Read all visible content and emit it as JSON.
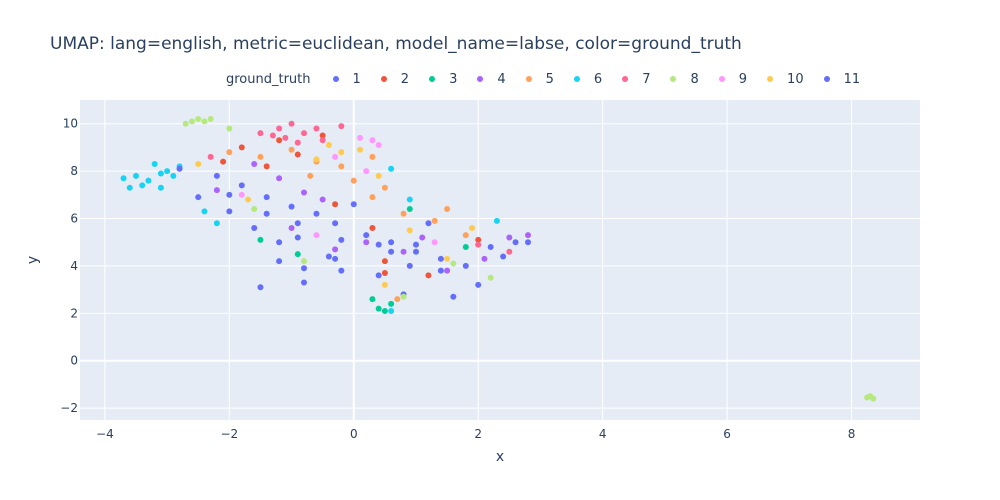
{
  "chart_data": {
    "type": "scatter",
    "title": "UMAP: lang=english, metric=euclidean, model_name=labse, color=ground_truth",
    "xlabel": "x",
    "ylabel": "y",
    "xlim": [
      -4.4,
      9.1
    ],
    "ylim": [
      -2.5,
      11
    ],
    "xticks": [
      -4,
      -2,
      0,
      2,
      4,
      6,
      8
    ],
    "yticks": [
      -2,
      0,
      2,
      4,
      6,
      8,
      10
    ],
    "grid": true,
    "legend": {
      "title": "ground_truth",
      "placement": "top"
    },
    "series": [
      {
        "name": "1",
        "color": "#636efa",
        "points": [
          [
            -2.2,
            7.8
          ],
          [
            -1.8,
            7.4
          ],
          [
            -1.4,
            6.9
          ],
          [
            -1.0,
            6.5
          ],
          [
            -0.6,
            6.2
          ],
          [
            -0.3,
            5.8
          ],
          [
            0.2,
            5.3
          ],
          [
            0.6,
            5.0
          ],
          [
            1.0,
            4.6
          ],
          [
            1.4,
            4.3
          ],
          [
            1.8,
            4.0
          ],
          [
            2.2,
            4.8
          ],
          [
            2.6,
            5.0
          ],
          [
            -1.2,
            4.2
          ],
          [
            -0.8,
            3.9
          ],
          [
            -0.4,
            4.4
          ],
          [
            0.4,
            3.6
          ],
          [
            0.9,
            4.0
          ],
          [
            1.6,
            2.7
          ],
          [
            1.2,
            5.8
          ],
          [
            0.8,
            2.8
          ],
          [
            -1.5,
            3.1
          ],
          [
            -0.2,
            3.8
          ],
          [
            -2.0,
            6.3
          ],
          [
            -1.6,
            5.6
          ],
          [
            -2.5,
            6.9
          ],
          [
            -0.9,
            5.2
          ],
          [
            0.0,
            6.6
          ]
        ]
      },
      {
        "name": "2",
        "color": "#ef553b",
        "points": [
          [
            -1.8,
            9.0
          ],
          [
            -1.2,
            9.3
          ],
          [
            -0.9,
            8.7
          ],
          [
            -0.5,
            9.5
          ],
          [
            -2.1,
            8.4
          ],
          [
            0.3,
            5.6
          ],
          [
            0.5,
            4.2
          ],
          [
            2.0,
            5.1
          ],
          [
            1.2,
            3.6
          ],
          [
            0.5,
            3.7
          ],
          [
            -1.4,
            8.2
          ],
          [
            -0.3,
            6.6
          ]
        ]
      },
      {
        "name": "3",
        "color": "#00cc96",
        "points": [
          [
            0.4,
            2.2
          ],
          [
            0.6,
            2.4
          ],
          [
            0.3,
            2.6
          ],
          [
            0.5,
            2.1
          ],
          [
            -1.5,
            5.1
          ],
          [
            1.8,
            4.8
          ],
          [
            -0.9,
            4.5
          ],
          [
            0.9,
            6.4
          ]
        ]
      },
      {
        "name": "4",
        "color": "#ab63fa",
        "points": [
          [
            -1.2,
            7.7
          ],
          [
            -0.8,
            7.1
          ],
          [
            -1.6,
            8.3
          ],
          [
            -0.5,
            6.8
          ],
          [
            0.2,
            5.0
          ],
          [
            0.8,
            4.6
          ],
          [
            1.5,
            3.8
          ],
          [
            2.1,
            4.3
          ],
          [
            2.5,
            5.2
          ],
          [
            -1.0,
            5.6
          ],
          [
            -0.3,
            4.7
          ],
          [
            1.1,
            5.2
          ],
          [
            -2.2,
            7.2
          ],
          [
            2.8,
            5.3
          ]
        ]
      },
      {
        "name": "5",
        "color": "#ffa15a",
        "points": [
          [
            -1.5,
            8.6
          ],
          [
            -1.0,
            8.9
          ],
          [
            -0.6,
            8.4
          ],
          [
            0.0,
            7.6
          ],
          [
            0.3,
            6.9
          ],
          [
            0.8,
            6.2
          ],
          [
            1.3,
            5.9
          ],
          [
            1.8,
            5.3
          ],
          [
            -0.2,
            8.2
          ],
          [
            0.5,
            7.3
          ],
          [
            -0.7,
            7.8
          ],
          [
            0.7,
            2.6
          ],
          [
            0.3,
            8.6
          ],
          [
            -2.0,
            8.8
          ],
          [
            1.5,
            6.4
          ]
        ]
      },
      {
        "name": "6",
        "color": "#19d3f3",
        "points": [
          [
            -3.7,
            7.7
          ],
          [
            -3.5,
            7.8
          ],
          [
            -3.3,
            7.6
          ],
          [
            -3.1,
            7.3
          ],
          [
            -3.0,
            8.0
          ],
          [
            -3.2,
            8.3
          ],
          [
            -3.4,
            7.4
          ],
          [
            -2.9,
            7.8
          ],
          [
            -3.6,
            7.3
          ],
          [
            -3.1,
            7.9
          ],
          [
            -2.4,
            6.3
          ],
          [
            -2.2,
            5.8
          ],
          [
            0.6,
            8.1
          ],
          [
            0.9,
            6.8
          ],
          [
            2.3,
            5.9
          ],
          [
            0.6,
            2.1
          ],
          [
            -2.8,
            8.2
          ]
        ]
      },
      {
        "name": "7",
        "color": "#ff6692",
        "points": [
          [
            -1.2,
            9.8
          ],
          [
            -1.0,
            10.0
          ],
          [
            -1.3,
            9.5
          ],
          [
            -0.8,
            9.6
          ],
          [
            -0.6,
            9.8
          ],
          [
            -1.1,
            9.4
          ],
          [
            -0.2,
            9.9
          ],
          [
            -0.5,
            9.3
          ],
          [
            -0.9,
            9.2
          ],
          [
            -1.5,
            9.6
          ],
          [
            -2.3,
            8.6
          ],
          [
            2.0,
            4.9
          ],
          [
            2.5,
            4.6
          ]
        ]
      },
      {
        "name": "8",
        "color": "#b6e880",
        "points": [
          [
            -2.6,
            10.1
          ],
          [
            -2.5,
            10.2
          ],
          [
            -2.3,
            10.2
          ],
          [
            -2.7,
            10.0
          ],
          [
            -2.4,
            10.1
          ],
          [
            -2.0,
            9.8
          ],
          [
            8.3,
            -1.5
          ],
          [
            8.35,
            -1.6
          ],
          [
            8.25,
            -1.55
          ],
          [
            -1.6,
            6.4
          ],
          [
            -0.8,
            4.2
          ],
          [
            0.8,
            2.7
          ],
          [
            2.2,
            3.5
          ],
          [
            1.6,
            4.1
          ]
        ]
      },
      {
        "name": "9",
        "color": "#ff97ff",
        "points": [
          [
            0.3,
            9.3
          ],
          [
            0.4,
            9.1
          ],
          [
            0.1,
            9.4
          ],
          [
            -0.3,
            8.6
          ],
          [
            0.2,
            8.0
          ],
          [
            -1.8,
            7.0
          ],
          [
            1.3,
            5.0
          ],
          [
            -0.6,
            5.3
          ]
        ]
      },
      {
        "name": "10",
        "color": "#fecb52",
        "points": [
          [
            -0.4,
            9.1
          ],
          [
            -0.2,
            8.8
          ],
          [
            0.1,
            8.9
          ],
          [
            -0.6,
            8.5
          ],
          [
            0.4,
            7.8
          ],
          [
            0.9,
            5.5
          ],
          [
            1.5,
            4.3
          ],
          [
            0.5,
            3.2
          ],
          [
            -1.7,
            6.8
          ],
          [
            -2.5,
            8.3
          ],
          [
            1.9,
            5.6
          ]
        ]
      },
      {
        "name": "11",
        "color": "#636efa",
        "points": [
          [
            -2.8,
            8.1
          ],
          [
            -2.0,
            7.0
          ],
          [
            -1.4,
            6.2
          ],
          [
            -0.9,
            5.8
          ],
          [
            -0.2,
            5.1
          ],
          [
            0.6,
            4.6
          ],
          [
            1.0,
            4.9
          ],
          [
            2.4,
            4.4
          ],
          [
            -0.8,
            3.3
          ],
          [
            -0.3,
            4.3
          ],
          [
            -1.2,
            5.0
          ],
          [
            1.4,
            3.8
          ],
          [
            2.0,
            3.2
          ],
          [
            0.4,
            4.9
          ],
          [
            2.8,
            5.0
          ]
        ]
      }
    ]
  }
}
